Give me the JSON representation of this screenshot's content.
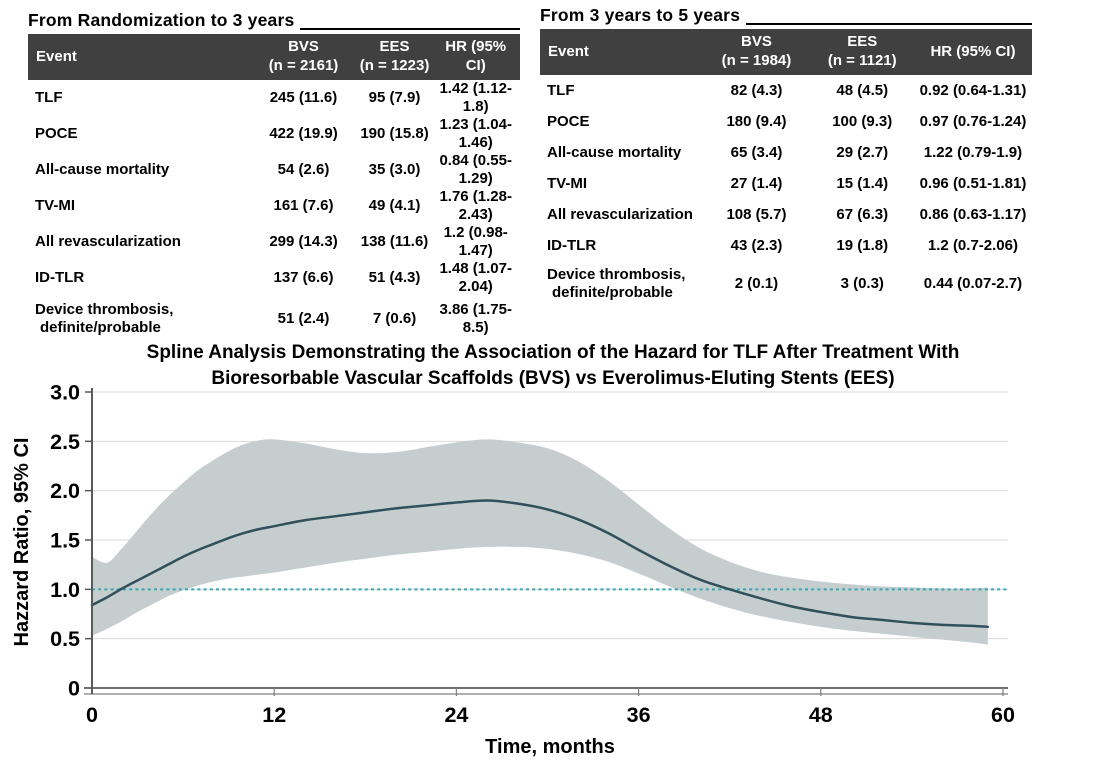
{
  "tables": [
    {
      "title": "From Randomization to 3 years",
      "columns": [
        {
          "label": "Event",
          "sub": ""
        },
        {
          "label": "BVS",
          "sub": "(n = 2161)"
        },
        {
          "label": "EES",
          "sub": "(n = 1223)"
        },
        {
          "label": "HR (95% CI)",
          "sub": ""
        }
      ],
      "rows": [
        {
          "event": "TLF",
          "event2": "",
          "bvs": "245 (11.6)",
          "ees": "95 (7.9)",
          "hr": "1.42 (1.12-1.8)"
        },
        {
          "event": "POCE",
          "event2": "",
          "bvs": "422 (19.9)",
          "ees": "190 (15.8)",
          "hr": "1.23 (1.04-1.46)"
        },
        {
          "event": "All-cause mortality",
          "event2": "",
          "bvs": "54 (2.6)",
          "ees": "35 (3.0)",
          "hr": "0.84 (0.55-1.29)"
        },
        {
          "event": "TV-MI",
          "event2": "",
          "bvs": "161 (7.6)",
          "ees": "49 (4.1)",
          "hr": "1.76 (1.28-2.43)"
        },
        {
          "event": "All revascularization",
          "event2": "",
          "bvs": "299 (14.3)",
          "ees": "138 (11.6)",
          "hr": "1.2 (0.98-1.47)"
        },
        {
          "event": "ID-TLR",
          "event2": "",
          "bvs": "137 (6.6)",
          "ees": "51 (4.3)",
          "hr": "1.48 (1.07-2.04)"
        },
        {
          "event": "Device thrombosis,",
          "event2": "definite/probable",
          "bvs": "51 (2.4)",
          "ees": "7 (0.6)",
          "hr": "3.86 (1.75-8.5)"
        }
      ]
    },
    {
      "title": "From 3 years to 5 years",
      "columns": [
        {
          "label": "Event",
          "sub": ""
        },
        {
          "label": "BVS",
          "sub": "(n = 1984)"
        },
        {
          "label": "EES",
          "sub": "(n = 1121)"
        },
        {
          "label": "HR (95% CI)",
          "sub": ""
        }
      ],
      "rows": [
        {
          "event": "TLF",
          "event2": "",
          "bvs": "82 (4.3)",
          "ees": "48 (4.5)",
          "hr": "0.92 (0.64-1.31)"
        },
        {
          "event": "POCE",
          "event2": "",
          "bvs": "180 (9.4)",
          "ees": "100 (9.3)",
          "hr": "0.97 (0.76-1.24)"
        },
        {
          "event": "All-cause mortality",
          "event2": "",
          "bvs": "65 (3.4)",
          "ees": "29 (2.7)",
          "hr": "1.22 (0.79-1.9)"
        },
        {
          "event": "TV-MI",
          "event2": "",
          "bvs": "27 (1.4)",
          "ees": "15 (1.4)",
          "hr": "0.96 (0.51-1.81)"
        },
        {
          "event": "All revascularization",
          "event2": "",
          "bvs": "108 (5.7)",
          "ees": "67 (6.3)",
          "hr": "0.86 (0.63-1.17)"
        },
        {
          "event": "ID-TLR",
          "event2": "",
          "bvs": "43 (2.3)",
          "ees": "19 (1.8)",
          "hr": "1.2 (0.7-2.06)"
        },
        {
          "event": "Device thrombosis,",
          "event2": "definite/probable",
          "bvs": "2 (0.1)",
          "ees": "3 (0.3)",
          "hr": "0.44 (0.07-2.7)"
        }
      ]
    }
  ],
  "chart_data": {
    "type": "line",
    "title_line1": "Spline Analysis Demonstrating the Association of the Hazard for TLF After Treatment With",
    "title_line2": "Bioresorbable Vascular Scaffolds (BVS) vs Everolimus-Eluting Stents (EES)",
    "xlabel": "Time, months",
    "ylabel": "Hazzard Ratio, 95% CI",
    "xlim": [
      0,
      60
    ],
    "ylim": [
      0,
      3
    ],
    "x_ticks": [
      {
        "value": 0,
        "label": "0"
      },
      {
        "value": 12,
        "label": "12"
      },
      {
        "value": 24,
        "label": "24"
      },
      {
        "value": 36,
        "label": "36"
      },
      {
        "value": 48,
        "label": "48"
      },
      {
        "value": 60,
        "label": "60"
      }
    ],
    "y_ticks": [
      {
        "value": 0,
        "label": "0"
      },
      {
        "value": 0.5,
        "label": "0.5"
      },
      {
        "value": 1.0,
        "label": "1.0"
      },
      {
        "value": 1.5,
        "label": "1.5"
      },
      {
        "value": 2.0,
        "label": "2.0"
      },
      {
        "value": 2.5,
        "label": "2.5"
      },
      {
        "value": 3.0,
        "label": "3.0"
      }
    ],
    "reference_line_y": 1.0,
    "grid": true,
    "legend": "none",
    "x": [
      0,
      1,
      2,
      3,
      4,
      5,
      6,
      7,
      8,
      9,
      10,
      11,
      12,
      14,
      16,
      18,
      20,
      22,
      24,
      26,
      28,
      30,
      32,
      34,
      36,
      38,
      40,
      42,
      44,
      46,
      48,
      50,
      52,
      54,
      56,
      58,
      59
    ],
    "series": [
      {
        "name": "hazard-ratio-spline",
        "y": [
          0.84,
          0.92,
          1.01,
          1.09,
          1.17,
          1.25,
          1.33,
          1.4,
          1.46,
          1.52,
          1.57,
          1.61,
          1.64,
          1.7,
          1.74,
          1.78,
          1.82,
          1.85,
          1.88,
          1.9,
          1.87,
          1.81,
          1.71,
          1.57,
          1.4,
          1.24,
          1.1,
          1.0,
          0.91,
          0.83,
          0.77,
          0.72,
          0.69,
          0.66,
          0.64,
          0.63,
          0.62
        ]
      },
      {
        "name": "ci-lower",
        "y": [
          0.53,
          0.6,
          0.68,
          0.77,
          0.85,
          0.93,
          0.99,
          1.04,
          1.08,
          1.11,
          1.13,
          1.15,
          1.17,
          1.22,
          1.27,
          1.31,
          1.35,
          1.38,
          1.41,
          1.43,
          1.43,
          1.41,
          1.36,
          1.28,
          1.16,
          1.03,
          0.91,
          0.81,
          0.73,
          0.67,
          0.62,
          0.58,
          0.55,
          0.52,
          0.49,
          0.46,
          0.44
        ]
      },
      {
        "name": "ci-upper",
        "y": [
          1.33,
          1.27,
          1.42,
          1.6,
          1.78,
          1.94,
          2.08,
          2.21,
          2.31,
          2.4,
          2.47,
          2.51,
          2.52,
          2.48,
          2.42,
          2.38,
          2.39,
          2.44,
          2.49,
          2.52,
          2.49,
          2.43,
          2.3,
          2.1,
          1.86,
          1.62,
          1.42,
          1.28,
          1.18,
          1.12,
          1.08,
          1.05,
          1.03,
          1.02,
          1.01,
          1.01,
          1.02
        ]
      }
    ],
    "colors": {
      "spline": "#30505b",
      "ci_band": "#c5cdcf",
      "reference_line": "#35a8ad",
      "grid": "#d9d9d9",
      "axis": "#595959",
      "table_header_bg": "#404040",
      "table_header_text": "#ffffff"
    }
  }
}
